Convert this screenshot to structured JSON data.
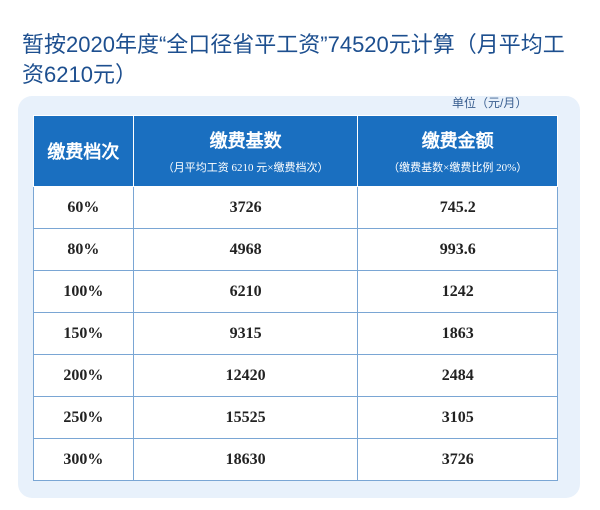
{
  "header": {
    "title": "暂按2020年度“全口径省平工资”74520元计算（月平均工资6210元）",
    "unit": "单位（元/月）"
  },
  "table": {
    "columns": [
      {
        "title": "缴费档次"
      },
      {
        "title": "缴费基数",
        "subtitle": "（月平均工资 6210 元×缴费档次）"
      },
      {
        "title": "缴费金额",
        "subtitle": "（缴费基数×缴费比例 20%）"
      }
    ],
    "rows": [
      [
        "60%",
        3726,
        745.2
      ],
      [
        "80%",
        4968,
        993.6
      ],
      [
        "100%",
        6210,
        1242
      ],
      [
        "150%",
        9315,
        1863
      ],
      [
        "200%",
        12420,
        2484
      ],
      [
        "250%",
        15525,
        3105
      ],
      [
        "300%",
        18630,
        3726
      ]
    ]
  }
}
